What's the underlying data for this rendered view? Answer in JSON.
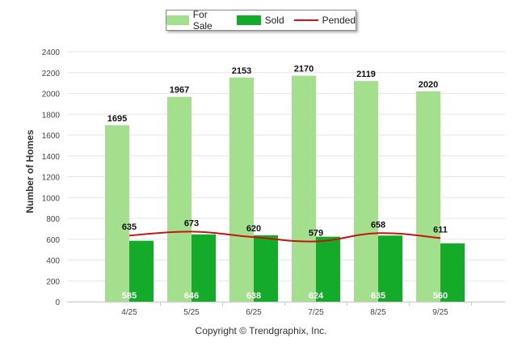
{
  "chart_data": {
    "type": "bar",
    "categories": [
      "4/25",
      "5/25",
      "6/25",
      "7/25",
      "8/25",
      "9/25"
    ],
    "series": [
      {
        "name": "For Sale",
        "kind": "bar",
        "color": "#a3df8c",
        "values": [
          1695,
          1967,
          2153,
          2170,
          2119,
          2020
        ]
      },
      {
        "name": "Sold",
        "kind": "bar",
        "color": "#14ab2a",
        "values": [
          585,
          646,
          638,
          624,
          635,
          560
        ]
      },
      {
        "name": "Pended",
        "kind": "line",
        "color": "#c41414",
        "values": [
          635,
          673,
          620,
          579,
          658,
          611
        ]
      }
    ],
    "ylabel": "Number of Homes",
    "xlabel": "",
    "ylim": [
      0,
      2400
    ],
    "yticks": [
      0,
      200,
      400,
      600,
      800,
      1000,
      1200,
      1400,
      1600,
      1800,
      2000,
      2200,
      2400
    ],
    "grid": true,
    "legend_position": "top-center"
  },
  "footer": {
    "copyright": "Copyright © Trendgraphix, Inc."
  }
}
